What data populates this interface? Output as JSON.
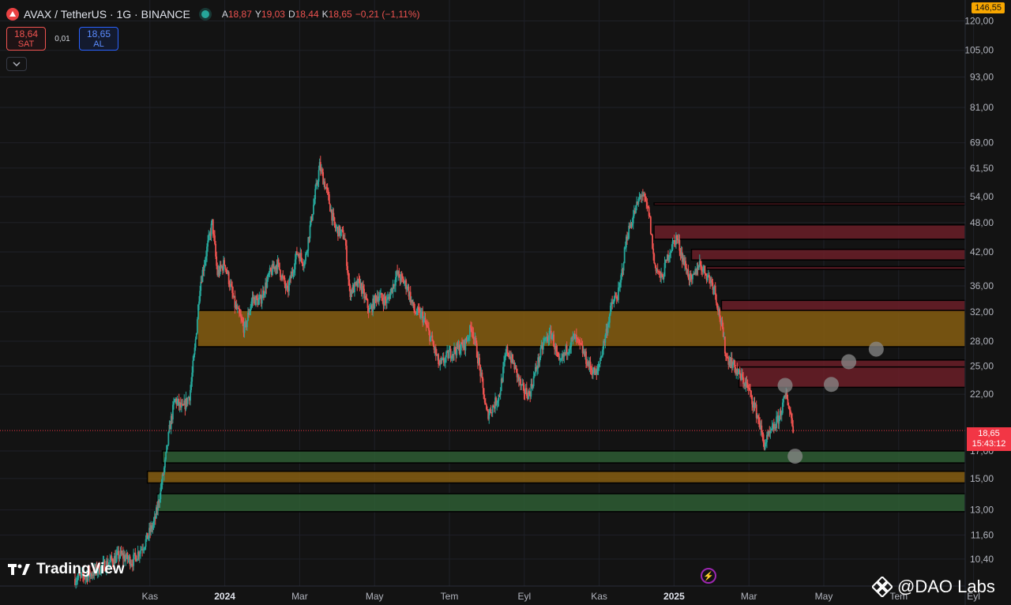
{
  "header": {
    "title": "AVAX / TetherUS · 1G · BINANCE",
    "ohlc": [
      {
        "k": "A",
        "v": "18,87"
      },
      {
        "k": "Y",
        "v": "19,03"
      },
      {
        "k": "D",
        "v": "18,44"
      },
      {
        "k": "K",
        "v": "18,65"
      }
    ],
    "change": "−0,21 (−1,11%)"
  },
  "trade": {
    "sell_price": "18,64",
    "sell_label": "SAT",
    "spread": "0,01",
    "buy_price": "18,65",
    "buy_label": "AL"
  },
  "price_label": {
    "price": "18,65",
    "countdown": "15:43:12"
  },
  "top_badge": "146,55",
  "watermark": "TradingView",
  "credit": "@DAO Labs",
  "colors": {
    "up": "#26a69a",
    "down": "#ef5350",
    "supply_zone": "#6b1f28",
    "support_zone": "#2e5d34",
    "key_zone": "#7f5a12"
  },
  "chart_data": {
    "type": "candlestick",
    "symbol": "AVAX / TetherUS",
    "timeframe": "1G",
    "exchange": "BINANCE",
    "y_scale": "log",
    "ylim": [
      9.2,
      132
    ],
    "y_ticks": [
      {
        "v": 120,
        "label": "120,00"
      },
      {
        "v": 105,
        "label": "105,00"
      },
      {
        "v": 93,
        "label": "93,00"
      },
      {
        "v": 81,
        "label": "81,00"
      },
      {
        "v": 69,
        "label": "69,00"
      },
      {
        "v": 61.5,
        "label": "61,50"
      },
      {
        "v": 54,
        "label": "54,00"
      },
      {
        "v": 48,
        "label": "48,00"
      },
      {
        "v": 42,
        "label": "42,00"
      },
      {
        "v": 36,
        "label": "36,00"
      },
      {
        "v": 32,
        "label": "32,00"
      },
      {
        "v": 28,
        "label": "28,00"
      },
      {
        "v": 25,
        "label": "25,00"
      },
      {
        "v": 22,
        "label": "22,00"
      },
      {
        "v": 17,
        "label": "17,00"
      },
      {
        "v": 15,
        "label": "15,00"
      },
      {
        "v": 13,
        "label": "13,00"
      },
      {
        "v": 11.6,
        "label": "11,60"
      },
      {
        "v": 10.4,
        "label": "10,40"
      }
    ],
    "x_ticks": [
      {
        "i": 3.0,
        "label": "Kas",
        "bold": false
      },
      {
        "i": 6.0,
        "label": "2024",
        "bold": true
      },
      {
        "i": 9.0,
        "label": "Mar",
        "bold": false
      },
      {
        "i": 12.0,
        "label": "May",
        "bold": false
      },
      {
        "i": 15.0,
        "label": "Tem",
        "bold": false
      },
      {
        "i": 18.0,
        "label": "Eyl",
        "bold": false
      },
      {
        "i": 21.0,
        "label": "Kas",
        "bold": false
      },
      {
        "i": 24.0,
        "label": "2025",
        "bold": true
      },
      {
        "i": 27.0,
        "label": "Mar",
        "bold": false
      },
      {
        "i": 30.0,
        "label": "May",
        "bold": false
      },
      {
        "i": 33.0,
        "label": "Tem",
        "bold": false
      },
      {
        "i": 36.0,
        "label": "Eyl",
        "bold": false
      }
    ],
    "close_path": [
      [
        0.0,
        9.5
      ],
      [
        0.6,
        9.7
      ],
      [
        1.3,
        10.2
      ],
      [
        1.8,
        10.6
      ],
      [
        2.3,
        10.3
      ],
      [
        2.8,
        11.2
      ],
      [
        3.2,
        12.4
      ],
      [
        3.4,
        14.0
      ],
      [
        3.6,
        16.0
      ],
      [
        3.8,
        19.0
      ],
      [
        4.0,
        21.5
      ],
      [
        4.3,
        20.5
      ],
      [
        4.6,
        22.0
      ],
      [
        4.8,
        27.0
      ],
      [
        5.0,
        36.0
      ],
      [
        5.3,
        43.0
      ],
      [
        5.5,
        48.0
      ],
      [
        5.7,
        38.0
      ],
      [
        6.0,
        40.0
      ],
      [
        6.4,
        33.0
      ],
      [
        6.8,
        29.5
      ],
      [
        7.1,
        34.0
      ],
      [
        7.4,
        33.5
      ],
      [
        7.8,
        38.0
      ],
      [
        8.1,
        40.0
      ],
      [
        8.5,
        35.0
      ],
      [
        8.9,
        42.0
      ],
      [
        9.2,
        40.0
      ],
      [
        9.5,
        50.0
      ],
      [
        9.8,
        62.0
      ],
      [
        10.1,
        55.0
      ],
      [
        10.4,
        47.0
      ],
      [
        10.8,
        45.0
      ],
      [
        11.0,
        35.0
      ],
      [
        11.4,
        36.5
      ],
      [
        11.8,
        32.0
      ],
      [
        12.1,
        34.5
      ],
      [
        12.5,
        33.5
      ],
      [
        12.9,
        38.0
      ],
      [
        13.3,
        36.0
      ],
      [
        13.6,
        32.0
      ],
      [
        13.9,
        31.5
      ],
      [
        14.3,
        28.0
      ],
      [
        14.6,
        25.0
      ],
      [
        15.0,
        26.5
      ],
      [
        15.3,
        27.0
      ],
      [
        15.6,
        27.5
      ],
      [
        15.9,
        30.0
      ],
      [
        16.2,
        25.0
      ],
      [
        16.5,
        20.0
      ],
      [
        16.8,
        21.0
      ],
      [
        17.0,
        22.0
      ],
      [
        17.3,
        27.0
      ],
      [
        17.6,
        25.0
      ],
      [
        17.9,
        22.5
      ],
      [
        18.2,
        22.0
      ],
      [
        18.5,
        25.0
      ],
      [
        18.8,
        28.0
      ],
      [
        19.1,
        29.0
      ],
      [
        19.4,
        25.0
      ],
      [
        19.7,
        27.0
      ],
      [
        20.0,
        28.5
      ],
      [
        20.3,
        27.0
      ],
      [
        20.6,
        25.0
      ],
      [
        20.9,
        24.0
      ],
      [
        21.2,
        28.0
      ],
      [
        21.5,
        33.0
      ],
      [
        21.8,
        35.0
      ],
      [
        22.1,
        45.0
      ],
      [
        22.4,
        50.0
      ],
      [
        22.7,
        55.0
      ],
      [
        23.0,
        50.0
      ],
      [
        23.2,
        40.0
      ],
      [
        23.5,
        37.0
      ],
      [
        23.8,
        42.0
      ],
      [
        24.1,
        45.0
      ],
      [
        24.4,
        40.0
      ],
      [
        24.7,
        36.5
      ],
      [
        25.0,
        40.0
      ],
      [
        25.3,
        38.0
      ],
      [
        25.6,
        36.0
      ],
      [
        25.9,
        30.0
      ],
      [
        26.1,
        26.0
      ],
      [
        26.3,
        25.5
      ],
      [
        26.6,
        24.0
      ],
      [
        26.9,
        23.0
      ],
      [
        27.2,
        21.0
      ],
      [
        27.4,
        19.5
      ],
      [
        27.6,
        17.5
      ],
      [
        27.9,
        18.5
      ],
      [
        28.2,
        19.8
      ],
      [
        28.5,
        22.0
      ],
      [
        28.8,
        18.65
      ]
    ],
    "zones": [
      {
        "type": "supply",
        "from": 52.0,
        "to": 52.5,
        "start": 23.2
      },
      {
        "type": "supply",
        "from": 44.5,
        "to": 47.5,
        "start": 23.2
      },
      {
        "type": "supply",
        "from": 40.5,
        "to": 42.5,
        "start": 24.7
      },
      {
        "type": "supply",
        "from": 38.8,
        "to": 39.3,
        "start": 25.3
      },
      {
        "type": "supply",
        "from": 31.9,
        "to": 33.7,
        "start": 25.9
      },
      {
        "type": "key",
        "from": 27.3,
        "to": 32.2,
        "start": 4.9
      },
      {
        "type": "supply",
        "from": 24.9,
        "to": 25.7,
        "start": 26.3
      },
      {
        "type": "supply",
        "from": 22.7,
        "to": 24.9,
        "start": 26.6
      },
      {
        "type": "support",
        "from": 16.1,
        "to": 17.0,
        "start": 3.5
      },
      {
        "type": "key",
        "from": 14.7,
        "to": 15.5,
        "start": 2.9
      },
      {
        "type": "support",
        "from": 12.9,
        "to": 14.0,
        "start": 3.3
      }
    ],
    "projection_points": [
      {
        "i": 28.85,
        "v": 16.6
      },
      {
        "i": 28.45,
        "v": 22.9
      },
      {
        "i": 30.3,
        "v": 23.0
      },
      {
        "i": 31.0,
        "v": 25.5
      },
      {
        "i": 32.1,
        "v": 27.0
      }
    ],
    "last_price": 18.65
  }
}
